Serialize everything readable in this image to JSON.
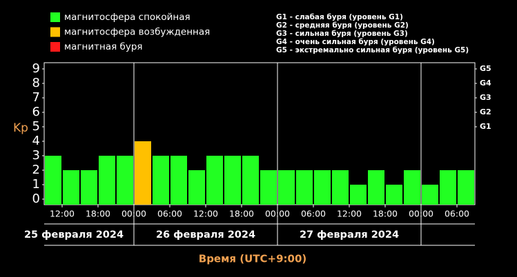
{
  "chart_data": {
    "type": "bar",
    "legend": [
      {
        "label": "магнитосфера спокойная",
        "color": "#22ff22"
      },
      {
        "label": "магнитосфера возбужденная",
        "color": "#ffc000"
      },
      {
        "label": "магнитная буря",
        "color": "#ff1a1a"
      }
    ],
    "storm_levels": [
      "G1 - слабая буря (уровень G1)",
      "G2 - средняя буря (уровень G2)",
      "G3 - сильная буря (уровень G3)",
      "G4 - очень сильная буря (уровень G4)",
      "G5 - экстремально сильная буря (уровень G5)"
    ],
    "y_label": "Kp",
    "x_label": "Время (UTC+9:00)",
    "x": [
      10.5,
      13.5,
      16.5,
      19.5,
      22.5,
      25.5,
      28.5,
      31.5,
      34.5,
      37.5,
      40.5,
      43.5,
      46.5,
      49.5,
      52.5,
      55.5,
      58.5,
      61.5,
      64.5,
      67.5,
      70.5,
      73.5,
      76.5,
      79.5
    ],
    "values": [
      3,
      2,
      2,
      3,
      3,
      4,
      3,
      3,
      2,
      3,
      3,
      3,
      2,
      2,
      2,
      2,
      2,
      1,
      2,
      1,
      2,
      1,
      2,
      2
    ],
    "colors": [
      "#22ff22",
      "#22ff22",
      "#22ff22",
      "#22ff22",
      "#22ff22",
      "#ffc000",
      "#22ff22",
      "#22ff22",
      "#22ff22",
      "#22ff22",
      "#22ff22",
      "#22ff22",
      "#22ff22",
      "#22ff22",
      "#22ff22",
      "#22ff22",
      "#22ff22",
      "#22ff22",
      "#22ff22",
      "#22ff22",
      "#22ff22",
      "#22ff22",
      "#22ff22",
      "#22ff22"
    ],
    "xlim": [
      9,
      81
    ],
    "xticks": [
      {
        "value": 12,
        "label": "12:00"
      },
      {
        "value": 18,
        "label": "18:00"
      },
      {
        "value": 24,
        "label": "00:00"
      },
      {
        "value": 30,
        "label": "06:00"
      },
      {
        "value": 36,
        "label": "12:00"
      },
      {
        "value": 42,
        "label": "18:00"
      },
      {
        "value": 48,
        "label": "00:00"
      },
      {
        "value": 54,
        "label": "06:00"
      },
      {
        "value": 60,
        "label": "12:00"
      },
      {
        "value": 66,
        "label": "18:00"
      },
      {
        "value": 72,
        "label": "00:00"
      },
      {
        "value": 78,
        "label": "06:00"
      }
    ],
    "day_dividers": [
      24,
      48,
      72
    ],
    "date_labels": [
      "25 февраля 2024",
      "26 февраля 2024",
      "27 февраля 2024"
    ],
    "ylim": [
      0,
      9
    ],
    "yticks": [
      0,
      1,
      2,
      3,
      4,
      5,
      6,
      7,
      8,
      9
    ],
    "y2lim": [
      0,
      9
    ],
    "y2ticks": [
      {
        "value": 5,
        "label": "G1"
      },
      {
        "value": 6,
        "label": "G2"
      },
      {
        "value": 7,
        "label": "G3"
      },
      {
        "value": 8,
        "label": "G4"
      },
      {
        "value": 9,
        "label": "G5"
      }
    ]
  }
}
